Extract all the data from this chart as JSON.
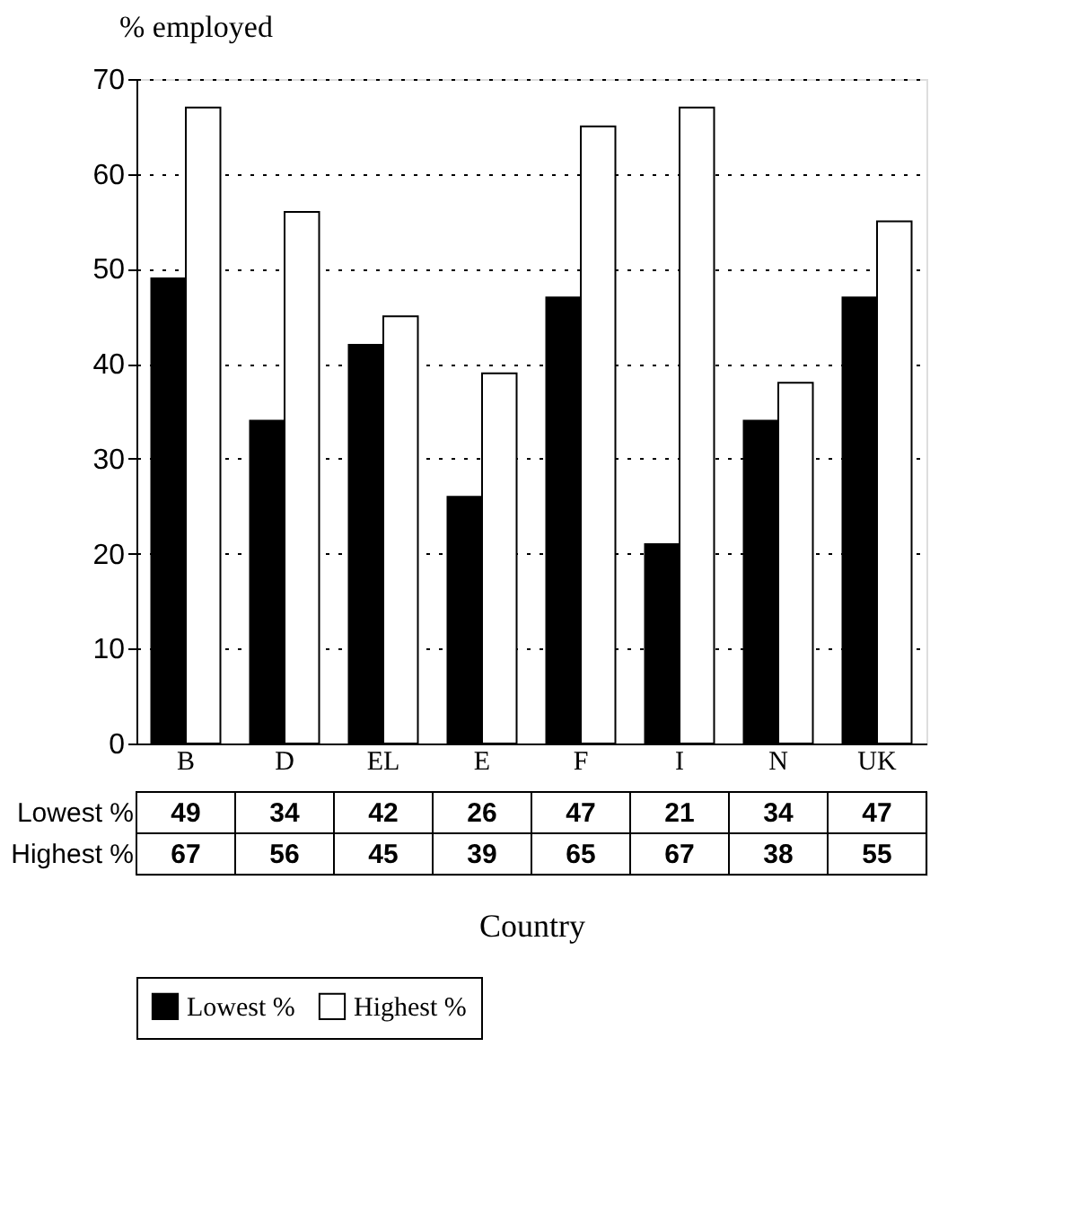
{
  "chart_data": {
    "type": "bar",
    "ylabel": "% employed",
    "xlabel": "Country",
    "categories": [
      "B",
      "D",
      "EL",
      "E",
      "F",
      "I",
      "N",
      "UK"
    ],
    "series": [
      {
        "name": "Lowest %",
        "color": "#000000",
        "values": [
          49,
          34,
          42,
          26,
          47,
          21,
          34,
          47
        ]
      },
      {
        "name": "Highest %",
        "color": "#ffffff",
        "values": [
          67,
          56,
          45,
          39,
          65,
          67,
          38,
          55
        ]
      }
    ],
    "ylim": [
      0,
      70
    ],
    "yticks": [
      0,
      10,
      20,
      30,
      40,
      50,
      60,
      70
    ],
    "grid": "y",
    "legend": "bottom",
    "data_labels": true
  }
}
